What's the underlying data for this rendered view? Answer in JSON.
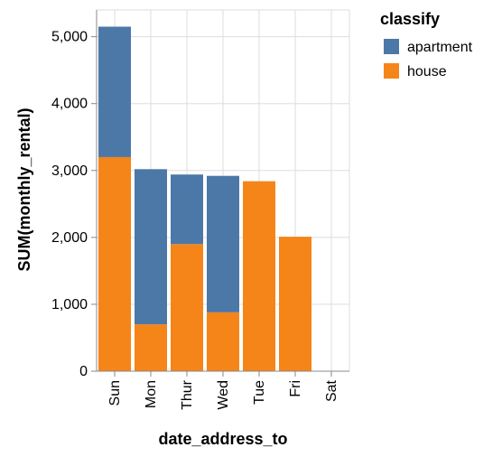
{
  "chart_data": {
    "type": "bar",
    "stacked": true,
    "xlabel": "date_address_to",
    "ylabel": "SUM(monthly_rental)",
    "ylim": [
      0,
      5400
    ],
    "y_ticks": [
      0,
      1000,
      2000,
      3000,
      4000,
      5000
    ],
    "y_tick_labels": [
      "0",
      "1,000",
      "2,000",
      "3,000",
      "4,000",
      "5,000"
    ],
    "grid": true,
    "categories": [
      "Sun",
      "Mon",
      "Thur",
      "Wed",
      "Tue",
      "Fri",
      "Sat"
    ],
    "series": [
      {
        "name": "house",
        "color": "#f58518",
        "values": [
          3200,
          700,
          1900,
          880,
          2840,
          2010,
          0
        ]
      },
      {
        "name": "apartment",
        "color": "#4c78a8",
        "values": [
          1950,
          2320,
          1040,
          2040,
          0,
          0,
          0
        ]
      }
    ],
    "legend": {
      "title": "classify",
      "position": "top-right",
      "entries": [
        {
          "label": "apartment",
          "color": "#4c78a8"
        },
        {
          "label": "house",
          "color": "#f58518"
        }
      ]
    }
  }
}
